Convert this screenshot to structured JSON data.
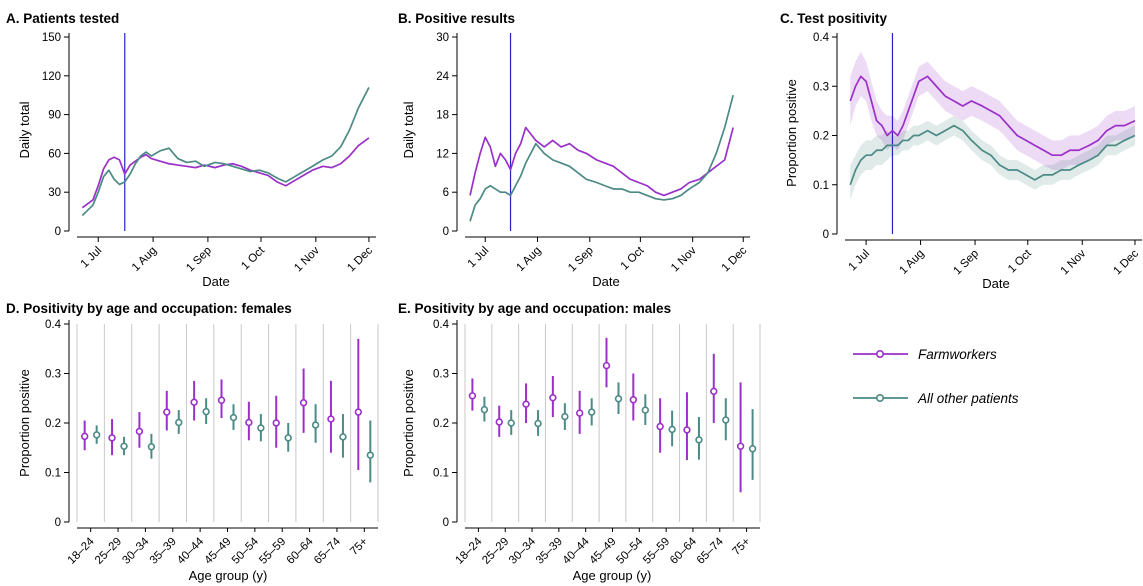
{
  "colors": {
    "farm": "#9b30c8",
    "other": "#4b8a85",
    "vline": "#2323c8",
    "grid": "#c8c8c8"
  },
  "dateTicks": [
    {
      "label": "1 Jul",
      "day": 0
    },
    {
      "label": "1 Aug",
      "day": 31
    },
    {
      "label": "1 Sep",
      "day": 62
    },
    {
      "label": "1 Oct",
      "day": 92
    },
    {
      "label": "1 Nov",
      "day": 123
    },
    {
      "label": "1 Dec",
      "day": 153
    }
  ],
  "ageGroups": [
    "18–24",
    "25–29",
    "30–34",
    "35–39",
    "40–44",
    "45–49",
    "50–54",
    "55–59",
    "60–64",
    "65–74",
    "75+"
  ],
  "legend": {
    "farm": "Farmworkers",
    "other": "All other patients"
  },
  "chart_data": [
    {
      "type": "line",
      "title": "A. Patients tested",
      "xlabel": "Date",
      "ylabel": "Daily total",
      "yticks": [
        0,
        30,
        60,
        90,
        120,
        150
      ],
      "ylim": [
        0,
        150
      ],
      "vline_date": "2020-07-16",
      "series": [
        {
          "name": "Farmworkers",
          "key": "farm",
          "x": [
            "2020-06-22",
            "2020-06-25",
            "2020-06-28",
            "2020-07-01",
            "2020-07-04",
            "2020-07-07",
            "2020-07-10",
            "2020-07-13",
            "2020-07-16",
            "2020-07-19",
            "2020-07-22",
            "2020-07-25",
            "2020-07-28",
            "2020-07-31",
            "2020-08-05",
            "2020-08-10",
            "2020-08-15",
            "2020-08-20",
            "2020-08-25",
            "2020-08-30",
            "2020-09-05",
            "2020-09-10",
            "2020-09-15",
            "2020-09-20",
            "2020-09-25",
            "2020-09-30",
            "2020-10-05",
            "2020-10-10",
            "2020-10-15",
            "2020-10-20",
            "2020-10-25",
            "2020-10-30",
            "2020-11-05",
            "2020-11-10",
            "2020-11-15",
            "2020-11-20",
            "2020-11-25",
            "2020-12-01"
          ],
          "y": [
            18,
            21,
            24,
            35,
            48,
            55,
            57,
            55,
            44,
            51,
            54,
            57,
            59,
            56,
            54,
            52,
            51,
            50,
            49,
            51,
            49,
            51,
            52,
            50,
            47,
            45,
            43,
            38,
            35,
            39,
            43,
            47,
            50,
            49,
            52,
            58,
            66,
            72
          ]
        },
        {
          "name": "All other patients",
          "key": "other",
          "x": [
            "2020-06-22",
            "2020-06-25",
            "2020-06-28",
            "2020-07-01",
            "2020-07-04",
            "2020-07-07",
            "2020-07-10",
            "2020-07-13",
            "2020-07-16",
            "2020-07-19",
            "2020-07-22",
            "2020-07-25",
            "2020-07-28",
            "2020-07-31",
            "2020-08-05",
            "2020-08-10",
            "2020-08-15",
            "2020-08-20",
            "2020-08-25",
            "2020-08-30",
            "2020-09-05",
            "2020-09-10",
            "2020-09-15",
            "2020-09-20",
            "2020-09-25",
            "2020-09-30",
            "2020-10-05",
            "2020-10-10",
            "2020-10-15",
            "2020-10-20",
            "2020-10-25",
            "2020-10-30",
            "2020-11-05",
            "2020-11-10",
            "2020-11-15",
            "2020-11-20",
            "2020-11-25",
            "2020-12-01"
          ],
          "y": [
            12,
            16,
            20,
            30,
            42,
            47,
            40,
            36,
            38,
            44,
            52,
            58,
            61,
            58,
            62,
            64,
            56,
            53,
            54,
            50,
            53,
            52,
            50,
            48,
            46,
            47,
            45,
            41,
            38,
            42,
            46,
            50,
            55,
            58,
            65,
            78,
            95,
            111
          ]
        }
      ]
    },
    {
      "type": "line",
      "title": "B. Positive results",
      "xlabel": "Date",
      "ylabel": "Daily total",
      "yticks": [
        0,
        6,
        12,
        18,
        24,
        30
      ],
      "ylim": [
        0,
        30
      ],
      "vline_date": "2020-07-16",
      "series": [
        {
          "name": "Farmworkers",
          "key": "farm",
          "x": [
            "2020-06-22",
            "2020-06-25",
            "2020-06-28",
            "2020-07-01",
            "2020-07-04",
            "2020-07-07",
            "2020-07-10",
            "2020-07-13",
            "2020-07-16",
            "2020-07-19",
            "2020-07-22",
            "2020-07-25",
            "2020-07-28",
            "2020-07-31",
            "2020-08-05",
            "2020-08-10",
            "2020-08-15",
            "2020-08-20",
            "2020-08-25",
            "2020-08-30",
            "2020-09-05",
            "2020-09-10",
            "2020-09-15",
            "2020-09-20",
            "2020-09-25",
            "2020-09-30",
            "2020-10-05",
            "2020-10-10",
            "2020-10-15",
            "2020-10-20",
            "2020-10-25",
            "2020-10-30",
            "2020-11-05",
            "2020-11-10",
            "2020-11-15",
            "2020-11-20",
            "2020-11-25"
          ],
          "y": [
            5.5,
            9,
            12,
            14.5,
            13,
            10,
            12,
            11,
            9.5,
            12,
            13.5,
            16,
            15,
            14,
            13,
            14,
            13,
            13.5,
            12.5,
            12,
            11,
            10.5,
            10,
            9,
            8,
            7.5,
            7,
            6,
            5.5,
            6,
            6.5,
            7.5,
            8,
            9,
            10,
            11,
            16
          ]
        },
        {
          "name": "All other patients",
          "key": "other",
          "x": [
            "2020-06-22",
            "2020-06-25",
            "2020-06-28",
            "2020-07-01",
            "2020-07-04",
            "2020-07-07",
            "2020-07-10",
            "2020-07-13",
            "2020-07-16",
            "2020-07-19",
            "2020-07-22",
            "2020-07-25",
            "2020-07-28",
            "2020-07-31",
            "2020-08-05",
            "2020-08-10",
            "2020-08-15",
            "2020-08-20",
            "2020-08-25",
            "2020-08-30",
            "2020-09-05",
            "2020-09-10",
            "2020-09-15",
            "2020-09-20",
            "2020-09-25",
            "2020-09-30",
            "2020-10-05",
            "2020-10-10",
            "2020-10-15",
            "2020-10-20",
            "2020-10-25",
            "2020-10-30",
            "2020-11-05",
            "2020-11-10",
            "2020-11-15",
            "2020-11-20",
            "2020-11-25"
          ],
          "y": [
            1.5,
            4,
            5,
            6.5,
            7,
            6.5,
            6,
            6,
            5.5,
            7,
            8.5,
            10.5,
            12,
            13.5,
            12,
            11,
            10.5,
            10,
            9,
            8,
            7.5,
            7,
            6.5,
            6.5,
            6,
            6,
            5.5,
            5,
            4.8,
            5,
            5.5,
            6.5,
            7.5,
            9,
            12,
            16,
            21
          ]
        }
      ]
    },
    {
      "type": "line",
      "title": "C. Test positivity",
      "xlabel": "Date",
      "ylabel": "Proportion positive",
      "yticks": [
        0.0,
        0.1,
        0.2,
        0.3,
        0.4
      ],
      "ylim": [
        0,
        0.4
      ],
      "vline_date": "2020-07-16",
      "series": [
        {
          "name": "Farmworkers",
          "key": "farm",
          "x": [
            "2020-06-22",
            "2020-06-25",
            "2020-06-28",
            "2020-07-01",
            "2020-07-04",
            "2020-07-07",
            "2020-07-10",
            "2020-07-13",
            "2020-07-16",
            "2020-07-19",
            "2020-07-22",
            "2020-07-25",
            "2020-07-28",
            "2020-07-31",
            "2020-08-05",
            "2020-08-10",
            "2020-08-15",
            "2020-08-20",
            "2020-08-25",
            "2020-08-30",
            "2020-09-05",
            "2020-09-10",
            "2020-09-15",
            "2020-09-20",
            "2020-09-25",
            "2020-09-30",
            "2020-10-05",
            "2020-10-10",
            "2020-10-15",
            "2020-10-20",
            "2020-10-25",
            "2020-10-30",
            "2020-11-05",
            "2020-11-10",
            "2020-11-15",
            "2020-11-20",
            "2020-11-25",
            "2020-12-01"
          ],
          "y": [
            0.27,
            0.3,
            0.32,
            0.31,
            0.27,
            0.23,
            0.22,
            0.2,
            0.21,
            0.2,
            0.22,
            0.25,
            0.28,
            0.31,
            0.32,
            0.3,
            0.28,
            0.27,
            0.26,
            0.27,
            0.26,
            0.25,
            0.24,
            0.22,
            0.2,
            0.19,
            0.18,
            0.17,
            0.16,
            0.16,
            0.17,
            0.17,
            0.18,
            0.19,
            0.21,
            0.22,
            0.22,
            0.23
          ],
          "lower": [
            0.22,
            0.26,
            0.28,
            0.27,
            0.23,
            0.2,
            0.19,
            0.17,
            0.18,
            0.17,
            0.19,
            0.22,
            0.25,
            0.28,
            0.29,
            0.27,
            0.25,
            0.24,
            0.23,
            0.24,
            0.23,
            0.22,
            0.21,
            0.19,
            0.17,
            0.16,
            0.15,
            0.14,
            0.13,
            0.13,
            0.14,
            0.14,
            0.15,
            0.16,
            0.18,
            0.19,
            0.19,
            0.2
          ],
          "upper": [
            0.32,
            0.35,
            0.37,
            0.35,
            0.31,
            0.27,
            0.25,
            0.24,
            0.24,
            0.23,
            0.25,
            0.28,
            0.31,
            0.34,
            0.35,
            0.33,
            0.31,
            0.3,
            0.29,
            0.3,
            0.29,
            0.28,
            0.27,
            0.25,
            0.23,
            0.22,
            0.21,
            0.2,
            0.19,
            0.19,
            0.2,
            0.2,
            0.21,
            0.22,
            0.24,
            0.25,
            0.25,
            0.26
          ]
        },
        {
          "name": "All other patients",
          "key": "other",
          "x": [
            "2020-06-22",
            "2020-06-25",
            "2020-06-28",
            "2020-07-01",
            "2020-07-04",
            "2020-07-07",
            "2020-07-10",
            "2020-07-13",
            "2020-07-16",
            "2020-07-19",
            "2020-07-22",
            "2020-07-25",
            "2020-07-28",
            "2020-07-31",
            "2020-08-05",
            "2020-08-10",
            "2020-08-15",
            "2020-08-20",
            "2020-08-25",
            "2020-08-30",
            "2020-09-05",
            "2020-09-10",
            "2020-09-15",
            "2020-09-20",
            "2020-09-25",
            "2020-09-30",
            "2020-10-05",
            "2020-10-10",
            "2020-10-15",
            "2020-10-20",
            "2020-10-25",
            "2020-10-30",
            "2020-11-05",
            "2020-11-10",
            "2020-11-15",
            "2020-11-20",
            "2020-11-25",
            "2020-12-01"
          ],
          "y": [
            0.1,
            0.13,
            0.15,
            0.16,
            0.16,
            0.17,
            0.17,
            0.18,
            0.18,
            0.18,
            0.19,
            0.19,
            0.2,
            0.2,
            0.21,
            0.2,
            0.21,
            0.22,
            0.21,
            0.19,
            0.17,
            0.16,
            0.14,
            0.13,
            0.13,
            0.12,
            0.11,
            0.12,
            0.12,
            0.13,
            0.13,
            0.14,
            0.15,
            0.16,
            0.18,
            0.18,
            0.19,
            0.2
          ],
          "lower": [
            0.07,
            0.1,
            0.12,
            0.13,
            0.13,
            0.14,
            0.14,
            0.15,
            0.16,
            0.16,
            0.17,
            0.17,
            0.18,
            0.18,
            0.19,
            0.18,
            0.19,
            0.2,
            0.19,
            0.17,
            0.15,
            0.14,
            0.12,
            0.11,
            0.11,
            0.1,
            0.09,
            0.1,
            0.1,
            0.11,
            0.11,
            0.12,
            0.13,
            0.14,
            0.16,
            0.16,
            0.17,
            0.18
          ],
          "upper": [
            0.14,
            0.16,
            0.18,
            0.19,
            0.19,
            0.2,
            0.2,
            0.21,
            0.2,
            0.2,
            0.21,
            0.21,
            0.22,
            0.22,
            0.23,
            0.22,
            0.23,
            0.24,
            0.23,
            0.21,
            0.19,
            0.18,
            0.16,
            0.15,
            0.15,
            0.14,
            0.13,
            0.14,
            0.14,
            0.15,
            0.15,
            0.16,
            0.17,
            0.18,
            0.2,
            0.2,
            0.21,
            0.22
          ]
        }
      ]
    },
    {
      "type": "scatter",
      "title": "D. Positivity by age and occupation: females",
      "xlabel": "Age group (y)",
      "ylabel": "Proportion positive",
      "yticks": [
        0.0,
        0.1,
        0.2,
        0.3,
        0.4
      ],
      "ylim": [
        0,
        0.4
      ],
      "series": [
        {
          "name": "Farmworkers",
          "key": "farm",
          "y": [
            0.173,
            0.17,
            0.183,
            0.222,
            0.242,
            0.246,
            0.201,
            0.2,
            0.241,
            0.208,
            0.222
          ],
          "lower": [
            0.145,
            0.135,
            0.15,
            0.185,
            0.205,
            0.21,
            0.165,
            0.15,
            0.18,
            0.14,
            0.105
          ],
          "upper": [
            0.205,
            0.208,
            0.222,
            0.265,
            0.285,
            0.288,
            0.243,
            0.255,
            0.31,
            0.285,
            0.37
          ]
        },
        {
          "name": "All other patients",
          "key": "other",
          "y": [
            0.176,
            0.153,
            0.152,
            0.201,
            0.223,
            0.211,
            0.19,
            0.17,
            0.196,
            0.172,
            0.135
          ],
          "lower": [
            0.158,
            0.135,
            0.128,
            0.178,
            0.198,
            0.186,
            0.163,
            0.142,
            0.16,
            0.13,
            0.08
          ],
          "upper": [
            0.195,
            0.172,
            0.178,
            0.226,
            0.25,
            0.238,
            0.218,
            0.2,
            0.238,
            0.218,
            0.205
          ]
        }
      ]
    },
    {
      "type": "scatter",
      "title": "E. Positivity by age and occupation: males",
      "xlabel": "Age group (y)",
      "ylabel": "Proportion positive",
      "yticks": [
        0.0,
        0.1,
        0.2,
        0.3,
        0.4
      ],
      "ylim": [
        0,
        0.4
      ],
      "series": [
        {
          "name": "Farmworkers",
          "key": "farm",
          "y": [
            0.255,
            0.202,
            0.238,
            0.251,
            0.22,
            0.316,
            0.247,
            0.193,
            0.186,
            0.264,
            0.153
          ],
          "lower": [
            0.225,
            0.172,
            0.2,
            0.212,
            0.178,
            0.272,
            0.205,
            0.14,
            0.125,
            0.2,
            0.06
          ],
          "upper": [
            0.29,
            0.235,
            0.28,
            0.295,
            0.265,
            0.372,
            0.3,
            0.25,
            0.262,
            0.34,
            0.282
          ]
        },
        {
          "name": "All other patients",
          "key": "other",
          "y": [
            0.227,
            0.2,
            0.199,
            0.213,
            0.222,
            0.249,
            0.226,
            0.187,
            0.166,
            0.206,
            0.148
          ],
          "lower": [
            0.203,
            0.176,
            0.174,
            0.186,
            0.195,
            0.218,
            0.196,
            0.153,
            0.126,
            0.165,
            0.085
          ],
          "upper": [
            0.253,
            0.226,
            0.226,
            0.24,
            0.25,
            0.282,
            0.258,
            0.225,
            0.212,
            0.25,
            0.228
          ]
        }
      ]
    }
  ]
}
